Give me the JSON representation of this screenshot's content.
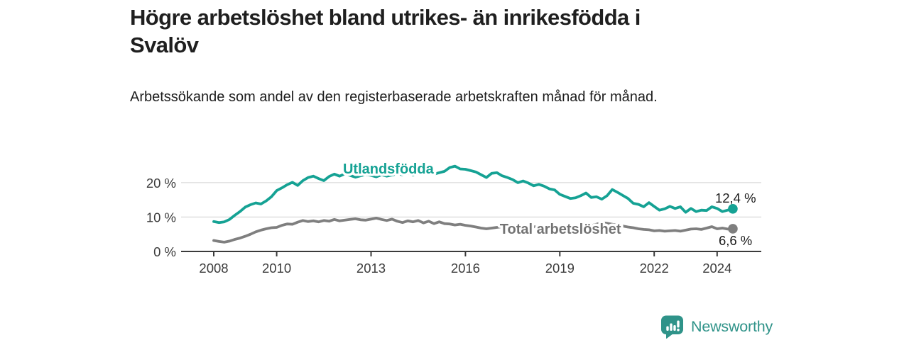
{
  "header": {
    "title_line1": "Högre arbetslöshet bland utrikes- än inrikesfödda i",
    "title_line2": "Svalöv",
    "subtitle": "Arbetssökande som andel av den registerbaserade arbetskraften månad för månad."
  },
  "chart_data": {
    "type": "line",
    "title": "Högre arbetslöshet bland utrikes- än inrikesfödda i Svalöv",
    "subtitle": "Arbetssökande som andel av den registerbaserade arbetskraften månad för månad.",
    "unit": "%",
    "x_start": 2008,
    "x_step_months": 2,
    "x_ticks": [
      2008,
      2010,
      2013,
      2016,
      2019,
      2022,
      2024
    ],
    "xlim": [
      2006.96,
      2025.4
    ],
    "ylim": [
      0,
      27.5
    ],
    "y_ticks": [
      {
        "value": 0,
        "label": "0 %"
      },
      {
        "value": 10,
        "label": "10 %"
      },
      {
        "value": 20,
        "label": "20 %"
      }
    ],
    "grid": "horizontal",
    "legend_position": "inline-labels",
    "series": [
      {
        "name": "Utlandsfödda",
        "color": "#15a294",
        "end_label": "12,4 %",
        "end_value": 12.4,
        "values": [
          8.7,
          8.4,
          8.6,
          9.3,
          10.5,
          11.6,
          12.9,
          13.6,
          14.1,
          13.8,
          14.7,
          15.9,
          17.7,
          18.5,
          19.4,
          20.1,
          19.2,
          20.6,
          21.5,
          21.9,
          21.2,
          20.6,
          21.8,
          22.5,
          21.9,
          22.6,
          22.1,
          21.6,
          22.0,
          22.4,
          22.1,
          21.7,
          22.3,
          21.9,
          22.2,
          22.6,
          22.3,
          22.8,
          22.2,
          22.6,
          23.1,
          22.7,
          22.5,
          22.9,
          23.3,
          24.4,
          24.8,
          24.0,
          23.9,
          23.5,
          23.1,
          22.3,
          21.5,
          22.7,
          22.9,
          22.0,
          21.5,
          20.9,
          20.0,
          20.5,
          19.9,
          19.1,
          19.5,
          19.0,
          18.2,
          17.9,
          16.6,
          16.0,
          15.4,
          15.6,
          16.2,
          17.0,
          15.7,
          15.9,
          15.2,
          16.2,
          18.0,
          17.2,
          16.3,
          15.4,
          14.0,
          13.7,
          13.0,
          14.2,
          13.1,
          12.0,
          12.4,
          13.1,
          12.5,
          13.0,
          11.4,
          12.5,
          11.6,
          12.0,
          11.9,
          13.0,
          12.5,
          11.6,
          12.0,
          12.4
        ]
      },
      {
        "name": "Total arbetslöshet",
        "color": "#7f7f7f",
        "label_color": "#737373",
        "end_label": "6,6 %",
        "end_value": 6.6,
        "values": [
          3.2,
          2.9,
          2.7,
          3.0,
          3.5,
          3.9,
          4.4,
          5.0,
          5.7,
          6.2,
          6.6,
          6.9,
          7.0,
          7.6,
          8.0,
          7.9,
          8.5,
          9.0,
          8.7,
          8.9,
          8.6,
          9.0,
          8.8,
          9.3,
          8.9,
          9.1,
          9.3,
          9.5,
          9.2,
          9.1,
          9.4,
          9.7,
          9.3,
          9.0,
          9.4,
          8.8,
          8.4,
          8.9,
          8.6,
          9.0,
          8.3,
          8.8,
          8.1,
          8.6,
          8.1,
          8.0,
          7.7,
          7.9,
          7.6,
          7.4,
          7.1,
          6.8,
          6.6,
          6.8,
          7.0,
          7.2,
          7.4,
          7.3,
          7.5,
          7.6,
          7.4,
          7.2,
          7.0,
          7.2,
          7.4,
          7.3,
          7.0,
          6.8,
          6.6,
          6.8,
          7.0,
          7.2,
          7.5,
          7.9,
          8.4,
          8.2,
          7.9,
          7.6,
          7.4,
          7.1,
          6.9,
          6.6,
          6.4,
          6.3,
          6.0,
          6.1,
          5.9,
          6.0,
          6.1,
          5.9,
          6.2,
          6.5,
          6.6,
          6.4,
          6.8,
          7.2,
          6.6,
          6.8,
          6.5,
          6.6
        ]
      }
    ]
  },
  "colors": {
    "axis_text": "#3c3c3c",
    "axis_line": "#3b3b3b",
    "grid": "#dcdcdc",
    "end_label_text": "#1a1a1a",
    "brand_teal": "#2f9389"
  },
  "footer": {
    "brand": "Newsworthy",
    "logo_icon": "speech-bubble-bar-chart"
  }
}
